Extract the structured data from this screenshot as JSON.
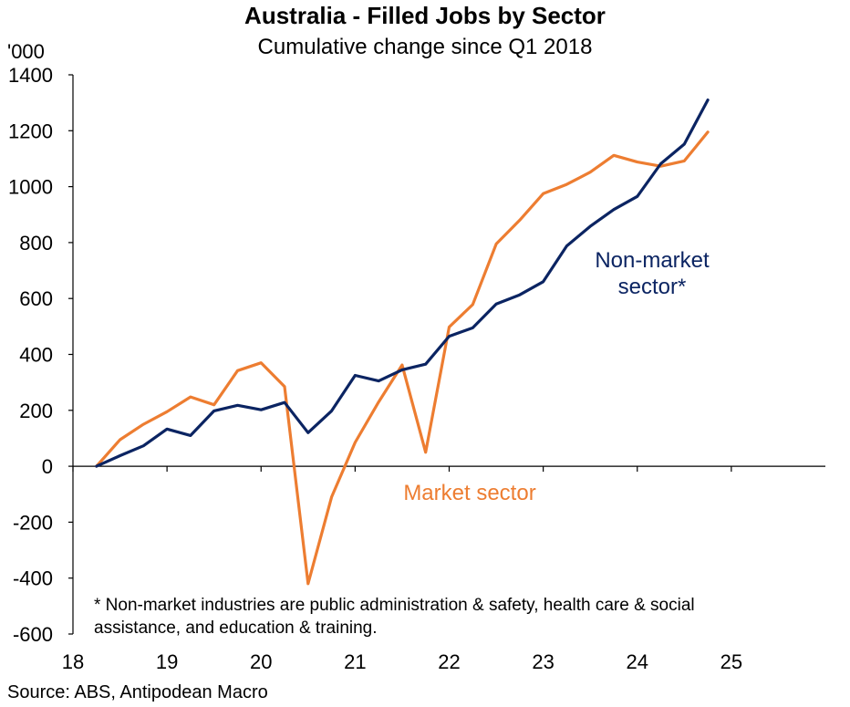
{
  "title": "Australia - Filled Jobs by Sector",
  "subtitle": "Cumulative change since Q1 2018",
  "unit": "'000",
  "source": "Source: ABS, Antipodean Macro",
  "footnote": [
    "* Non-market industries are public administration & safety, health care & social",
    "assistance, and education & training."
  ],
  "colors": {
    "market": "#ED7D31",
    "non_market": "#0B2462",
    "axis": "#000000"
  },
  "chart_data": {
    "type": "line",
    "title": "Australia - Filled Jobs by Sector",
    "subtitle": "Cumulative change since Q1 2018",
    "ylabel": "'000",
    "xlabel": "",
    "ylim": [
      -600,
      1400
    ],
    "xlim": [
      2018,
      2026
    ],
    "yticks": [
      1400,
      1200,
      1000,
      800,
      600,
      400,
      200,
      0,
      -200,
      -400,
      -600
    ],
    "xticks": [
      "18",
      "19",
      "20",
      "21",
      "22",
      "23",
      "24",
      "25"
    ],
    "grid": false,
    "x": [
      2018.25,
      2018.5,
      2018.75,
      2019.0,
      2019.25,
      2019.5,
      2019.75,
      2020.0,
      2020.25,
      2020.5,
      2020.75,
      2021.0,
      2021.25,
      2021.5,
      2021.75,
      2022.0,
      2022.25,
      2022.5,
      2022.75,
      2023.0,
      2023.25,
      2023.5,
      2023.75,
      2024.0,
      2024.25,
      2024.5,
      2024.75
    ],
    "series": [
      {
        "name": "Market sector",
        "color": "#ED7D31",
        "values": [
          0,
          95,
          150,
          195,
          248,
          220,
          342,
          370,
          285,
          -420,
          -110,
          85,
          230,
          362,
          50,
          498,
          578,
          795,
          880,
          975,
          1008,
          1052,
          1112,
          1088,
          1073,
          1092,
          1195
        ]
      },
      {
        "name": "Non-market sector*",
        "color": "#0B2462",
        "values": [
          0,
          38,
          73,
          133,
          110,
          198,
          218,
          202,
          228,
          120,
          198,
          325,
          305,
          345,
          365,
          465,
          495,
          580,
          613,
          660,
          788,
          858,
          918,
          965,
          1082,
          1152,
          1310
        ]
      }
    ],
    "annotations": [
      {
        "text": "Market sector",
        "series": "Market sector"
      },
      {
        "text": [
          "Non-market",
          "sector*"
        ],
        "series": "Non-market sector*"
      }
    ]
  }
}
